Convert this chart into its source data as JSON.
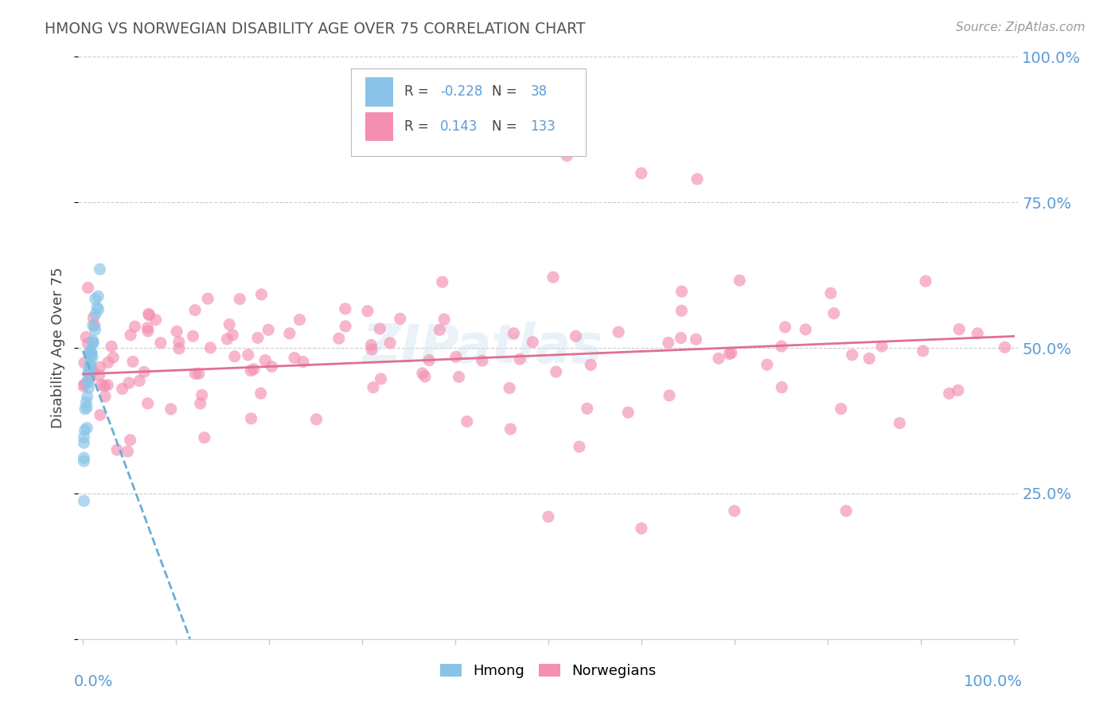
{
  "title": "HMONG VS NORWEGIAN DISABILITY AGE OVER 75 CORRELATION CHART",
  "source": "Source: ZipAtlas.com",
  "ylabel": "Disability Age Over 75",
  "hmong_color": "#89c4e8",
  "norwegian_color": "#f48fb1",
  "trendline_hmong_color": "#6aaed6",
  "trendline_norwegian_color": "#e07090",
  "watermark": "ZIPatlas",
  "background_color": "#ffffff",
  "grid_color": "#cccccc",
  "title_color": "#555555",
  "source_color": "#999999",
  "label_color": "#5b9bd5",
  "text_color": "#444444",
  "hmong_R": -0.228,
  "hmong_N": 38,
  "norwegian_R": 0.143,
  "norwegian_N": 133,
  "legend_box_color": "#f0f4f8",
  "legend_box_edge": "#aaaaaa"
}
